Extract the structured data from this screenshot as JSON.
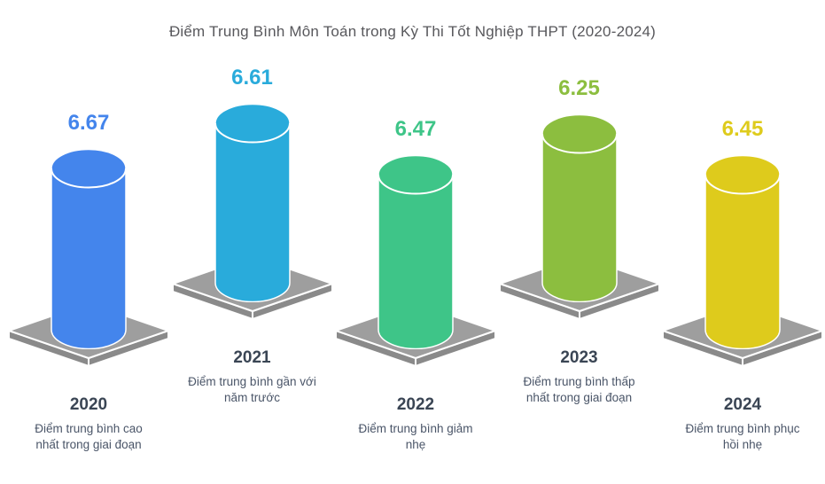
{
  "chart": {
    "title": "Điểm Trung Bình Môn Toán trong Kỳ Thi Tốt Nghiệp THPT (2020-2024)"
  },
  "chart_data": {
    "type": "bar",
    "variant": "3d-cylinder-infographic",
    "title": "Điểm Trung Bình Môn Toán trong Kỳ Thi Tốt Nghiệp THPT (2020-2024)",
    "categories": [
      "2020",
      "2021",
      "2022",
      "2023",
      "2024"
    ],
    "values": [
      6.67,
      6.61,
      6.47,
      6.25,
      6.45
    ],
    "value_labels": [
      "6.67",
      "6.61",
      "6.47",
      "6.25",
      "6.45"
    ],
    "annotations": [
      "Điểm trung bình cao\nnhất trong giai đoạn",
      "Điểm trung bình gần với\nnăm trước",
      "Điểm trung bình giảm\nnhẹ",
      "Điểm trung bình thấp\nnhất trong giai đoạn",
      "Điểm trung bình phục\nhồi nhẹ"
    ],
    "colors": [
      "#4485EC",
      "#29ABDB",
      "#3EC588",
      "#8CBE3F",
      "#DECB1C"
    ],
    "platform_colors": {
      "top": "#9E9E9E",
      "side": "#8A8A8A",
      "edge": "#FFFFFF"
    },
    "text_colors": {
      "title": "#58585C",
      "year": "#3A4554",
      "annotation": "#4A5568"
    },
    "xlabel": "",
    "ylabel": "",
    "ylim": [
      0,
      7
    ],
    "grid": false,
    "legend": false
  }
}
